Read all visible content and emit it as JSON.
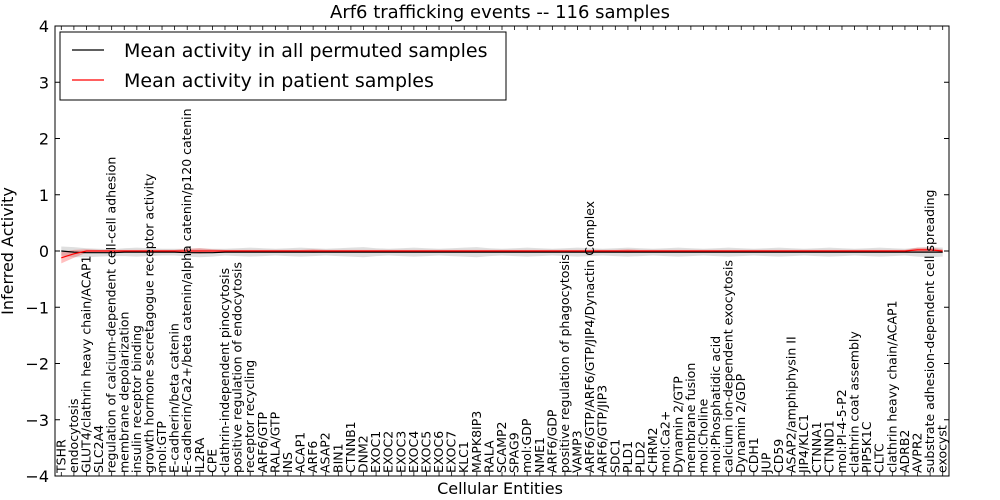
{
  "chart_data": {
    "type": "line",
    "title": "Arf6 trafficking events -- 116 samples",
    "xlabel": "Cellular Entities",
    "ylabel": "Inferred Activity",
    "ylim": [
      -4,
      4
    ],
    "yticks": [
      "4",
      "3",
      "2",
      "1",
      "0",
      "−1",
      "−2",
      "−3",
      "−4"
    ],
    "legend_position": "upper-left",
    "categories": [
      "TSHR",
      "endocytosis",
      "GLUT4/clathrin heavy chain/ACAP1",
      "SLC2A4",
      "regulation of calcium-dependent cell-cell adhesion",
      "membrane depolarization",
      "insulin receptor binding",
      "growth hormone secretagogue receptor activity",
      "mol:GTP",
      "E-cadherin/beta catenin",
      "E-cadherin/Ca2+/beta catenin/alpha catenin/p120 catenin",
      "IL2RA",
      "CPE",
      "clathrin-independent pinocytosis",
      "positive regulation of endocytosis",
      "receptor recycling",
      "ARF6/GTP",
      "RALA/GTP",
      "INS",
      "ACAP1",
      "ARF6",
      "ASAP2",
      "BIN1",
      "CTNNB1",
      "DNM2",
      "EXOC1",
      "EXOC2",
      "EXOC3",
      "EXOC4",
      "EXOC5",
      "EXOC6",
      "EXOC7",
      "KLC1",
      "MAPK8IP3",
      "RALA",
      "SCAMP2",
      "SPAG9",
      "mol:GDP",
      "NME1",
      "ARF6/GDP",
      "positive regulation of phagocytosis",
      "VAMP3",
      "ARF6/GTP/ARF6/GTP/JIP4/Dynactin Complex",
      "ARF6/GTP/JIP3",
      "SDC1",
      "PLD1",
      "PLD2",
      "CHRM2",
      "mol:Ca2+",
      "Dynamin 2/GTP",
      "membrane fusion",
      "mol:Choline",
      "mol:Phosphatidic acid",
      "calcium ion-dependent exocytosis",
      "Dynamin 2/GDP",
      "CDH1",
      "JUP",
      "CD59",
      "ASAP2/amphiphysin II",
      "JIP4/KLC1",
      "CTNNA1",
      "CTNND1",
      "mol:PI-4-5-P2",
      "clathrin coat assembly",
      "PIP5K1C",
      "CLTC",
      "clathrin heavy chain/ACAP1",
      "ADRB2",
      "AVPR2",
      "substrate adhesion-dependent cell spreading",
      "exocyst"
    ],
    "series": [
      {
        "name": "Mean activity in all permuted samples",
        "color": "#000000",
        "values": [
          0.0,
          -0.02,
          -0.03,
          -0.03,
          -0.03,
          -0.02,
          -0.02,
          -0.02,
          -0.02,
          -0.02,
          -0.03,
          -0.03,
          -0.03,
          -0.02,
          -0.02,
          -0.02,
          -0.02,
          -0.02,
          -0.02,
          -0.02,
          -0.02,
          -0.02,
          -0.02,
          -0.02,
          -0.02,
          -0.02,
          -0.02,
          -0.02,
          -0.02,
          -0.02,
          -0.02,
          -0.02,
          -0.02,
          -0.02,
          -0.02,
          -0.02,
          -0.02,
          -0.02,
          -0.02,
          -0.02,
          -0.02,
          -0.02,
          -0.02,
          -0.02,
          -0.02,
          -0.02,
          -0.02,
          -0.02,
          -0.02,
          -0.02,
          -0.02,
          -0.02,
          -0.02,
          -0.02,
          -0.02,
          -0.02,
          -0.02,
          -0.02,
          -0.02,
          -0.02,
          -0.02,
          -0.02,
          -0.02,
          -0.02,
          -0.02,
          -0.02,
          -0.02,
          -0.02,
          -0.02,
          -0.02,
          -0.02
        ],
        "band": [
          0.08,
          0.09,
          0.08,
          0.07,
          0.06,
          0.07,
          0.08,
          0.07,
          0.06,
          0.06,
          0.07,
          0.08,
          0.07,
          0.06,
          0.07,
          0.08,
          0.07,
          0.06,
          0.07,
          0.08,
          0.07,
          0.06,
          0.07,
          0.08,
          0.09,
          0.07,
          0.06,
          0.07,
          0.08,
          0.07,
          0.06,
          0.07,
          0.08,
          0.09,
          0.07,
          0.06,
          0.07,
          0.08,
          0.07,
          0.06,
          0.07,
          0.08,
          0.07,
          0.06,
          0.07,
          0.08,
          0.07,
          0.06,
          0.07,
          0.08,
          0.07,
          0.06,
          0.07,
          0.08,
          0.07,
          0.06,
          0.07,
          0.08,
          0.07,
          0.06,
          0.07,
          0.08,
          0.07,
          0.06,
          0.07,
          0.08,
          0.07,
          0.06,
          0.08,
          0.09,
          0.08
        ]
      },
      {
        "name": "Mean activity in patient samples",
        "color": "#ff0000",
        "values": [
          -0.12,
          -0.05,
          0.0,
          0.0,
          0.0,
          0.0,
          0.0,
          0.0,
          0.0,
          0.0,
          0.0,
          0.0,
          0.0,
          0.0,
          0.0,
          0.0,
          0.0,
          0.0,
          0.0,
          0.0,
          0.0,
          0.0,
          0.0,
          0.0,
          0.0,
          0.0,
          0.0,
          0.0,
          0.0,
          0.0,
          0.0,
          0.0,
          0.0,
          0.0,
          0.0,
          0.0,
          0.0,
          0.0,
          0.0,
          0.0,
          0.0,
          0.0,
          0.0,
          0.0,
          0.0,
          0.0,
          0.0,
          0.0,
          0.0,
          0.0,
          0.0,
          0.0,
          0.0,
          0.0,
          0.0,
          0.0,
          0.0,
          0.0,
          0.0,
          0.0,
          0.0,
          0.0,
          0.0,
          0.0,
          0.0,
          0.0,
          0.0,
          0.0,
          0.02,
          0.02,
          0.0
        ],
        "band": [
          0.1,
          0.07,
          0.03,
          0.02,
          0.02,
          0.02,
          0.02,
          0.02,
          0.02,
          0.02,
          0.04,
          0.05,
          0.03,
          0.02,
          0.02,
          0.02,
          0.02,
          0.02,
          0.02,
          0.02,
          0.03,
          0.02,
          0.02,
          0.02,
          0.02,
          0.02,
          0.02,
          0.02,
          0.02,
          0.02,
          0.02,
          0.02,
          0.02,
          0.02,
          0.02,
          0.02,
          0.02,
          0.02,
          0.02,
          0.02,
          0.02,
          0.02,
          0.02,
          0.02,
          0.02,
          0.03,
          0.02,
          0.02,
          0.02,
          0.02,
          0.02,
          0.02,
          0.02,
          0.02,
          0.02,
          0.02,
          0.02,
          0.02,
          0.02,
          0.02,
          0.02,
          0.02,
          0.02,
          0.02,
          0.02,
          0.02,
          0.02,
          0.02,
          0.04,
          0.04,
          0.03
        ]
      }
    ]
  }
}
